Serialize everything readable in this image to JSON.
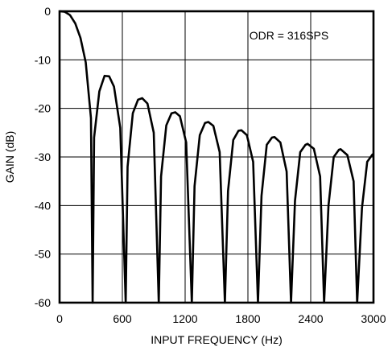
{
  "colors": {
    "background": "#ffffff",
    "line": "#000000",
    "grid": "#000000",
    "text": "#000000"
  },
  "chart_data": {
    "type": "line",
    "title": "",
    "annotation": "ODR = 316SPS",
    "xlabel": "INPUT FREQUENCY (Hz)",
    "ylabel": "GAIN (dB)",
    "xlim": [
      0,
      3000
    ],
    "ylim": [
      -60,
      0
    ],
    "x_ticks": [
      0,
      600,
      1200,
      1800,
      2400,
      3000
    ],
    "x_tick_labels": [
      "0",
      "600",
      "1200",
      "1800",
      "2400",
      "3000"
    ],
    "y_ticks": [
      0,
      -10,
      -20,
      -30,
      -40,
      -50,
      -60
    ],
    "y_tick_labels": [
      "0",
      "-10",
      "-20",
      "-30",
      "-40",
      "-50",
      "-60"
    ],
    "grid": true,
    "series": [
      {
        "name": "",
        "x": [
          0,
          50,
          100,
          150,
          200,
          250,
          300,
          316,
          330,
          380,
          430,
          474,
          520,
          580,
          632,
          650,
          700,
          750,
          790,
          840,
          900,
          948,
          970,
          1020,
          1070,
          1106,
          1150,
          1210,
          1264,
          1290,
          1340,
          1390,
          1422,
          1470,
          1530,
          1580,
          1610,
          1660,
          1710,
          1738,
          1790,
          1850,
          1896,
          1930,
          1980,
          2030,
          2054,
          2110,
          2170,
          2212,
          2250,
          2300,
          2350,
          2370,
          2430,
          2490,
          2528,
          2570,
          2620,
          2670,
          2686,
          2750,
          2810,
          2844,
          2890,
          2940,
          2990,
          3000
        ],
        "y": [
          0,
          -0.1,
          -0.8,
          -2.5,
          -5.5,
          -10.5,
          -22,
          -60,
          -26,
          -16.5,
          -13.3,
          -13.4,
          -15.5,
          -24,
          -60,
          -32,
          -21,
          -18.2,
          -17.9,
          -19,
          -25,
          -60,
          -34,
          -23.5,
          -21,
          -20.8,
          -21.6,
          -27,
          -60,
          -36,
          -25.5,
          -23,
          -22.8,
          -23.6,
          -29,
          -60,
          -37,
          -26.5,
          -24.6,
          -24.5,
          -25.5,
          -31,
          -60,
          -38,
          -27.5,
          -26,
          -25.9,
          -27,
          -33,
          -60,
          -39,
          -29,
          -27.5,
          -27.3,
          -28.3,
          -34,
          -60,
          -40,
          -30,
          -28.5,
          -28.4,
          -29.6,
          -35,
          -60,
          -40.5,
          -31,
          -29.5,
          -29.4
        ]
      }
    ]
  }
}
